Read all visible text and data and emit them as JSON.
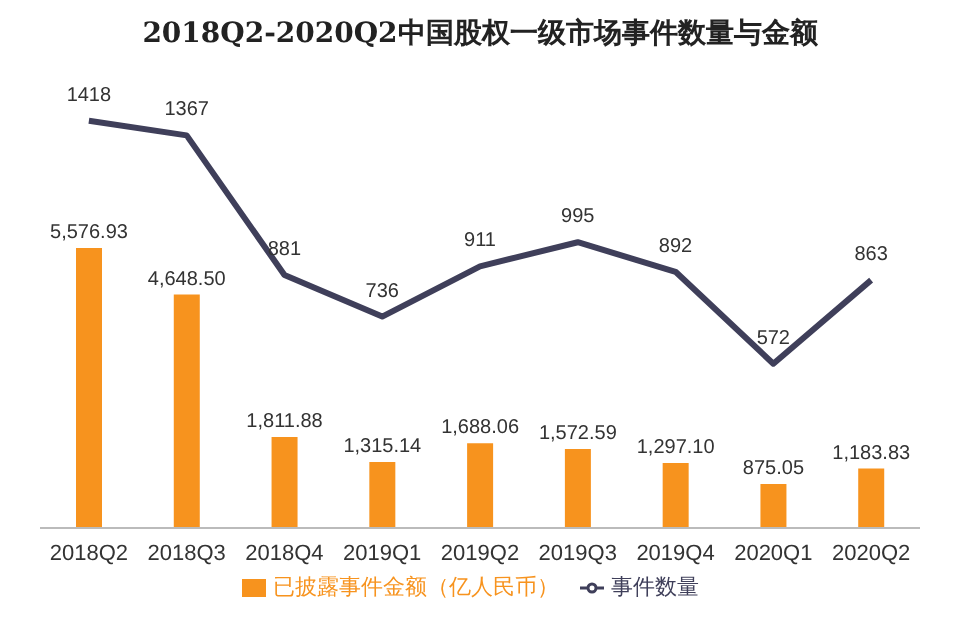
{
  "chart_data": {
    "type": "bar",
    "title": "2018Q2-2020Q2中国股权一级市场事件数量与金额",
    "categories": [
      "2018Q2",
      "2018Q3",
      "2018Q4",
      "2019Q1",
      "2019Q2",
      "2019Q3",
      "2019Q4",
      "2020Q1",
      "2020Q2"
    ],
    "series": [
      {
        "name": "已披露事件金额（亿人民币）",
        "color": "#f7931e",
        "values": [
          5576.93,
          4648.5,
          1811.88,
          1315.14,
          1688.06,
          1572.59,
          1297.1,
          875.05,
          1183.83
        ],
        "value_labels": [
          "5,576.93",
          "4,648.50",
          "1,811.88",
          "1,315.14",
          "1,688.06",
          "1,572.59",
          "1,297.10",
          "875.05",
          "1,183.83"
        ]
      },
      {
        "name": "事件数量",
        "type": "line",
        "axis": "y2",
        "color": "#3f3f5a",
        "marker": "none",
        "values": [
          1418,
          1367,
          881,
          736,
          911,
          995,
          892,
          572,
          863
        ],
        "value_labels": [
          "1418",
          "1367",
          "881",
          "736",
          "911",
          "995",
          "892",
          "572",
          "863"
        ]
      }
    ],
    "tick_labels": "x",
    "legend": "bottom",
    "grid": false
  }
}
